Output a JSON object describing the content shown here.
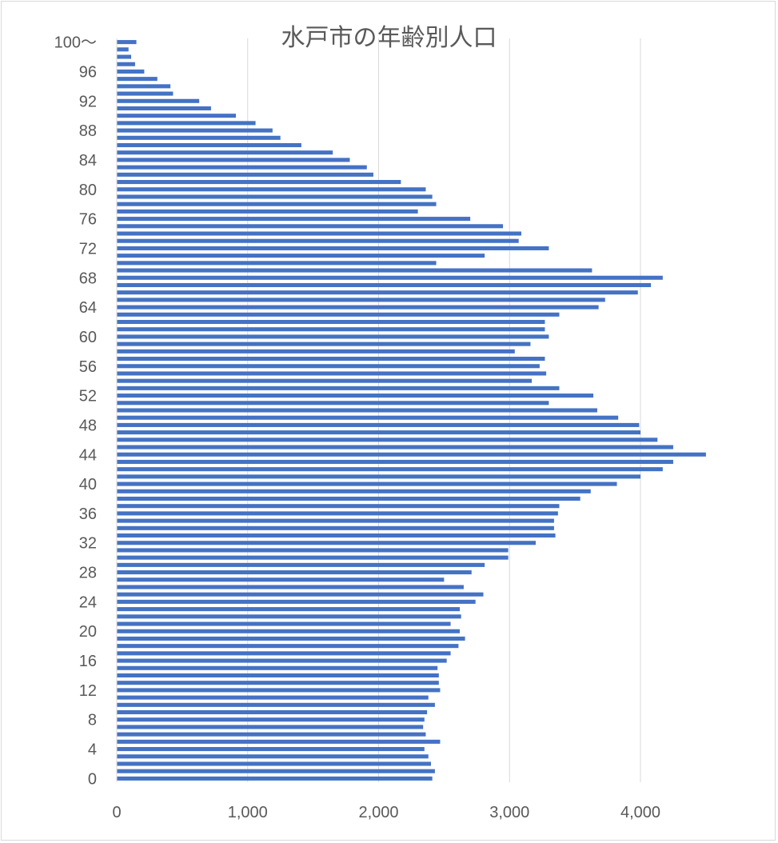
{
  "chart_data": {
    "type": "bar",
    "orientation": "horizontal",
    "title": "水戸市の年齢別人口",
    "xlabel": "",
    "ylabel": "",
    "xlim": [
      0,
      5000
    ],
    "x_ticks": [
      0,
      1000,
      2000,
      3000,
      4000
    ],
    "x_tick_labels": [
      "0",
      "1,000",
      "2,000",
      "3,000",
      "4,000"
    ],
    "grid": "vertical",
    "legend": "none",
    "bar_color": "#4472c4",
    "categories": [
      "0",
      "1",
      "2",
      "3",
      "4",
      "5",
      "6",
      "7",
      "8",
      "9",
      "10",
      "11",
      "12",
      "13",
      "14",
      "15",
      "16",
      "17",
      "18",
      "19",
      "20",
      "21",
      "22",
      "23",
      "24",
      "25",
      "26",
      "27",
      "28",
      "29",
      "30",
      "31",
      "32",
      "33",
      "34",
      "35",
      "36",
      "37",
      "38",
      "39",
      "40",
      "41",
      "42",
      "43",
      "44",
      "45",
      "46",
      "47",
      "48",
      "49",
      "50",
      "51",
      "52",
      "53",
      "54",
      "55",
      "56",
      "57",
      "58",
      "59",
      "60",
      "61",
      "62",
      "63",
      "64",
      "65",
      "66",
      "67",
      "68",
      "69",
      "70",
      "71",
      "72",
      "73",
      "74",
      "75",
      "76",
      "77",
      "78",
      "79",
      "80",
      "81",
      "82",
      "83",
      "84",
      "85",
      "86",
      "87",
      "88",
      "89",
      "90",
      "91",
      "92",
      "93",
      "94",
      "95",
      "96",
      "97",
      "98",
      "99",
      "100〜"
    ],
    "y_tick_labels": [
      "0",
      "4",
      "8",
      "12",
      "16",
      "20",
      "24",
      "28",
      "32",
      "36",
      "40",
      "44",
      "48",
      "52",
      "56",
      "60",
      "64",
      "68",
      "72",
      "76",
      "80",
      "84",
      "88",
      "92",
      "96",
      "100〜"
    ],
    "values": [
      2410,
      2430,
      2400,
      2380,
      2350,
      2470,
      2360,
      2340,
      2350,
      2370,
      2430,
      2380,
      2470,
      2460,
      2460,
      2450,
      2520,
      2550,
      2610,
      2660,
      2620,
      2550,
      2630,
      2620,
      2740,
      2800,
      2650,
      2500,
      2710,
      2810,
      2990,
      2990,
      3200,
      3350,
      3340,
      3340,
      3370,
      3380,
      3540,
      3620,
      3820,
      4000,
      4170,
      4250,
      4500,
      4250,
      4130,
      4000,
      3990,
      3830,
      3670,
      3300,
      3640,
      3380,
      3170,
      3280,
      3230,
      3270,
      3040,
      3160,
      3300,
      3270,
      3270,
      3380,
      3680,
      3730,
      3980,
      4080,
      4170,
      3630,
      2440,
      2810,
      3300,
      3070,
      3090,
      2950,
      2700,
      2300,
      2440,
      2410,
      2360,
      2170,
      1960,
      1910,
      1780,
      1650,
      1410,
      1250,
      1190,
      1060,
      910,
      720,
      630,
      430,
      410,
      310,
      210,
      140,
      110,
      90,
      150
    ]
  }
}
